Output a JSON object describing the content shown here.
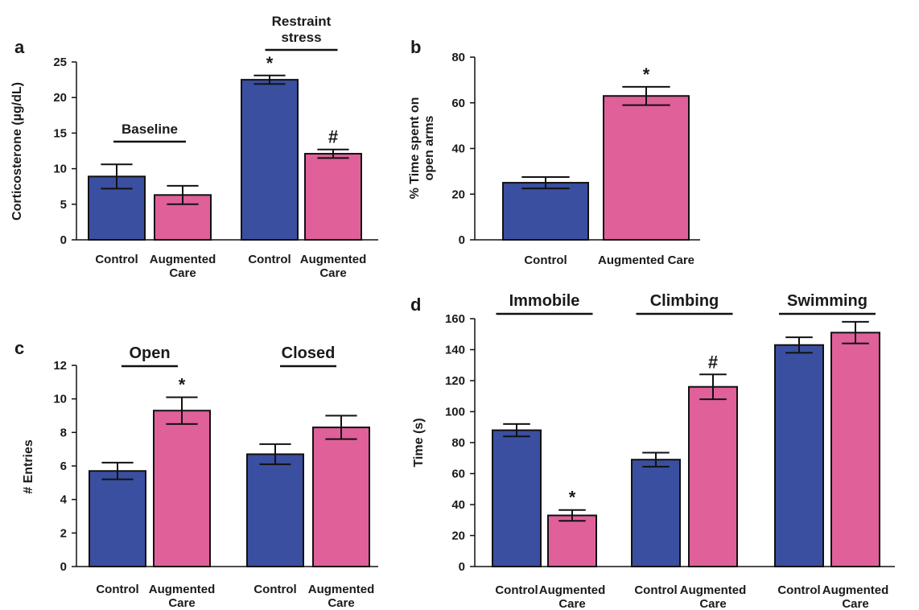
{
  "colors": {
    "control": "#3a4fa0",
    "augmented": "#e0609a",
    "stroke": "#111111"
  },
  "chart_data": [
    {
      "panel": "a",
      "type": "bar",
      "ylabel": "Corticosterone (µg/dL)",
      "ylim": [
        0,
        25
      ],
      "yticks": [
        0,
        5,
        10,
        15,
        20,
        25
      ],
      "categories": [
        {
          "line1": "Control",
          "line2": ""
        },
        {
          "line1": "Augmented",
          "line2": "Care"
        },
        {
          "line1": "Control",
          "line2": ""
        },
        {
          "line1": "Augmented",
          "line2": "Care"
        }
      ],
      "values": [
        8.9,
        6.3,
        22.5,
        12.1
      ],
      "errors": [
        1.7,
        1.3,
        0.6,
        0.6
      ],
      "colors": [
        "control",
        "augmented",
        "control",
        "augmented"
      ],
      "annotations": [
        "",
        "",
        "*",
        "#"
      ],
      "groups": [
        {
          "label": "Baseline",
          "line2": "",
          "bars": [
            0,
            1
          ]
        },
        {
          "label": "Restraint",
          "line2": "stress",
          "bars": [
            2,
            3
          ]
        }
      ]
    },
    {
      "panel": "b",
      "type": "bar",
      "ylabel": "% Time spent on",
      "ylabel2": "open arms",
      "ylim": [
        0,
        80
      ],
      "yticks": [
        0,
        20,
        40,
        60,
        80
      ],
      "categories": [
        {
          "line1": "Control",
          "line2": ""
        },
        {
          "line1": "Augmented Care",
          "line2": ""
        }
      ],
      "values": [
        25,
        63
      ],
      "errors": [
        2.5,
        4
      ],
      "colors": [
        "control",
        "augmented"
      ],
      "annotations": [
        "",
        "*"
      ],
      "groups": []
    },
    {
      "panel": "c",
      "type": "bar",
      "ylabel": "# Entries",
      "ylim": [
        0,
        12
      ],
      "yticks": [
        0,
        2,
        4,
        6,
        8,
        10,
        12
      ],
      "categories": [
        {
          "line1": "Control",
          "line2": ""
        },
        {
          "line1": "Augmented",
          "line2": "Care"
        },
        {
          "line1": "Control",
          "line2": ""
        },
        {
          "line1": "Augmented",
          "line2": "Care"
        }
      ],
      "values": [
        5.7,
        9.3,
        6.7,
        8.3
      ],
      "errors": [
        0.5,
        0.8,
        0.6,
        0.7
      ],
      "colors": [
        "control",
        "augmented",
        "control",
        "augmented"
      ],
      "annotations": [
        "",
        "*",
        "",
        ""
      ],
      "groups": [
        {
          "label": "Open",
          "line2": "",
          "bars": [
            0,
            1
          ]
        },
        {
          "label": "Closed",
          "line2": "",
          "bars": [
            2,
            3
          ]
        }
      ]
    },
    {
      "panel": "d",
      "type": "bar",
      "ylabel": "Time (s)",
      "ylim": [
        0,
        160
      ],
      "yticks": [
        0,
        20,
        40,
        60,
        80,
        100,
        120,
        140,
        160
      ],
      "categories": [
        {
          "line1": "Control",
          "line2": ""
        },
        {
          "line1": "Augmented",
          "line2": "Care"
        },
        {
          "line1": "Control",
          "line2": ""
        },
        {
          "line1": "Augmented",
          "line2": "Care"
        },
        {
          "line1": "Control",
          "line2": ""
        },
        {
          "line1": "Augmented",
          "line2": "Care"
        }
      ],
      "values": [
        88,
        33,
        69,
        116,
        143,
        151
      ],
      "errors": [
        4,
        3.5,
        4.5,
        8,
        5,
        7
      ],
      "colors": [
        "control",
        "augmented",
        "control",
        "augmented",
        "control",
        "augmented"
      ],
      "annotations": [
        "",
        "*",
        "",
        "#",
        "",
        ""
      ],
      "groups": [
        {
          "label": "Immobile",
          "line2": "",
          "bars": [
            0,
            1
          ]
        },
        {
          "label": "Climbing",
          "line2": "",
          "bars": [
            2,
            3
          ]
        },
        {
          "label": "Swimming",
          "line2": "",
          "bars": [
            4,
            5
          ]
        }
      ]
    }
  ]
}
